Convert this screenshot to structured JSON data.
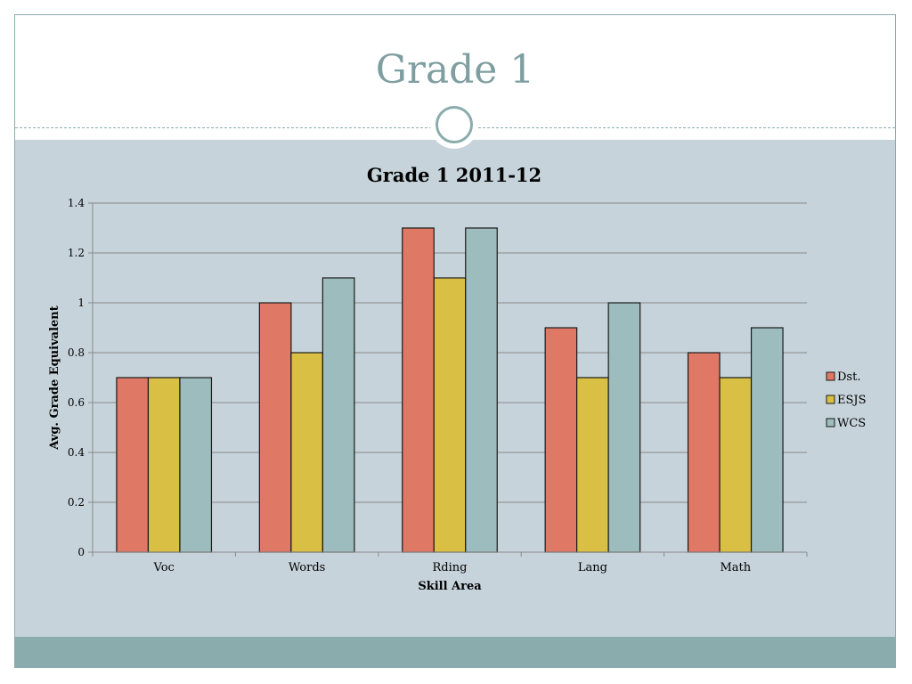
{
  "slide": {
    "title": "Grade 1"
  },
  "colors": {
    "frame": "#8aacad",
    "panel": "#c6d3da",
    "title": "#7f9ea0"
  },
  "chart_data": {
    "type": "bar",
    "title": "Grade 1 2011-12",
    "xlabel": "Skill Area",
    "ylabel": "Avg. Grade Equivalent",
    "categories": [
      "Voc",
      "Words",
      "Rding",
      "Lang",
      "Math"
    ],
    "series": [
      {
        "name": "Dst.",
        "values": [
          0.7,
          1.0,
          1.3,
          0.9,
          0.8
        ],
        "color": "#e07866"
      },
      {
        "name": "ESJS",
        "values": [
          0.7,
          0.8,
          1.1,
          0.7,
          0.7
        ],
        "color": "#d9c044"
      },
      {
        "name": "WCS",
        "values": [
          0.7,
          1.1,
          1.3,
          1.0,
          0.9
        ],
        "color": "#9dbcbd"
      }
    ],
    "ylim": [
      0,
      1.4
    ],
    "yticks": [
      "0",
      "0.2",
      "0.4",
      "0.6",
      "0.8",
      "1",
      "1.2",
      "1.4"
    ],
    "grid": true,
    "legend": "right"
  }
}
